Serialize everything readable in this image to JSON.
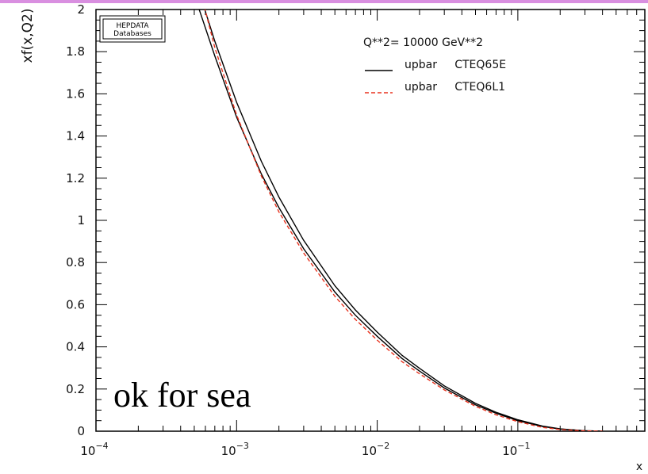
{
  "chart_data": {
    "type": "line",
    "title": "",
    "xlabel": "x",
    "ylabel": "xf(x,Q2)",
    "x_scale": "log",
    "xlim": [
      0.0001,
      0.8
    ],
    "ylim": [
      0,
      2
    ],
    "x_ticks": [
      {
        "value": 0.0001,
        "base": "10",
        "exp": "−4"
      },
      {
        "value": 0.001,
        "base": "10",
        "exp": "−3"
      },
      {
        "value": 0.01,
        "base": "10",
        "exp": "−2"
      },
      {
        "value": 0.1,
        "base": "10",
        "exp": "−1"
      }
    ],
    "y_ticks": [
      "0",
      "0.2",
      "0.4",
      "0.6",
      "0.8",
      "1",
      "1.2",
      "1.4",
      "1.6",
      "1.8",
      "2"
    ],
    "legend_header": "Q**2=   10000    GeV**2",
    "legend_position": "top-right",
    "series": [
      {
        "name": "upbar     CTEQ65E",
        "color": "#000000",
        "style": "solid",
        "x": [
          0.0005,
          0.0007,
          0.001,
          0.0015,
          0.002,
          0.003,
          0.005,
          0.007,
          0.01,
          0.015,
          0.02,
          0.03,
          0.05,
          0.07,
          0.1,
          0.15,
          0.2,
          0.3,
          0.4
        ],
        "y": [
          2.07,
          1.78,
          1.49,
          1.22,
          1.06,
          0.865,
          0.66,
          0.55,
          0.45,
          0.345,
          0.285,
          0.205,
          0.125,
          0.085,
          0.05,
          0.022,
          0.01,
          0.002,
          0.0
        ]
      },
      {
        "name": "upbar     CTEQ65E",
        "color": "#000000",
        "style": "solid",
        "x": [
          0.00055,
          0.0007,
          0.001,
          0.0015,
          0.002,
          0.003,
          0.005,
          0.007,
          0.01,
          0.015,
          0.02,
          0.03,
          0.05,
          0.07,
          0.1,
          0.15,
          0.2,
          0.3,
          0.4
        ],
        "y": [
          2.07,
          1.85,
          1.56,
          1.28,
          1.11,
          0.905,
          0.69,
          0.575,
          0.47,
          0.36,
          0.298,
          0.215,
          0.132,
          0.09,
          0.054,
          0.024,
          0.011,
          0.002,
          0.0
        ]
      },
      {
        "name": "upbar     CTEQ6L1",
        "color": "#e8321e",
        "style": "dashed",
        "x": [
          0.00056,
          0.0007,
          0.001,
          0.0015,
          0.002,
          0.003,
          0.005,
          0.007,
          0.01,
          0.015,
          0.02,
          0.03,
          0.05,
          0.07,
          0.1,
          0.15,
          0.2,
          0.3,
          0.4
        ],
        "y": [
          2.07,
          1.82,
          1.5,
          1.21,
          1.04,
          0.845,
          0.64,
          0.53,
          0.432,
          0.33,
          0.272,
          0.196,
          0.118,
          0.078,
          0.045,
          0.018,
          0.008,
          0.0015,
          0.0
        ]
      }
    ],
    "annotation": "ok for sea",
    "stamp": "HEPDATA Databases"
  }
}
